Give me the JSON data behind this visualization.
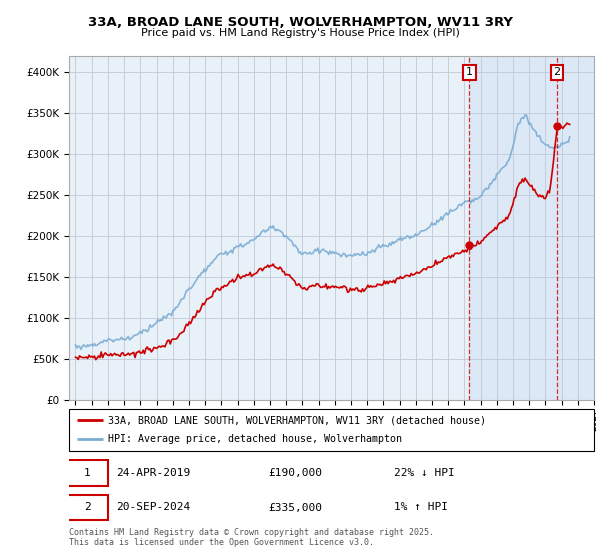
{
  "title_line1": "33A, BROAD LANE SOUTH, WOLVERHAMPTON, WV11 3RY",
  "title_line2": "Price paid vs. HM Land Registry's House Price Index (HPI)",
  "legend_line1": "33A, BROAD LANE SOUTH, WOLVERHAMPTON, WV11 3RY (detached house)",
  "legend_line2": "HPI: Average price, detached house, Wolverhampton",
  "annotation1_date": "24-APR-2019",
  "annotation1_price": "£190,000",
  "annotation1_hpi": "22% ↓ HPI",
  "annotation2_date": "20-SEP-2024",
  "annotation2_price": "£335,000",
  "annotation2_hpi": "1% ↑ HPI",
  "footer": "Contains HM Land Registry data © Crown copyright and database right 2025.\nThis data is licensed under the Open Government Licence v3.0.",
  "red_color": "#cc0000",
  "blue_color": "#7aadd4",
  "bg_color": "#e8f0f8",
  "bg_shade_color": "#dce8f5",
  "grid_color": "#c0c8d8",
  "hatch_bg": "#dce8f5",
  "ytick_labels": [
    "£0",
    "£50K",
    "£100K",
    "£150K",
    "£200K",
    "£250K",
    "£300K",
    "£350K",
    "£400K"
  ],
  "yticks": [
    0,
    50000,
    100000,
    150000,
    200000,
    250000,
    300000,
    350000,
    400000
  ],
  "sale1_year": 2019.3,
  "sale1_price": 190000,
  "sale2_year": 2024.72,
  "sale2_price": 335000
}
